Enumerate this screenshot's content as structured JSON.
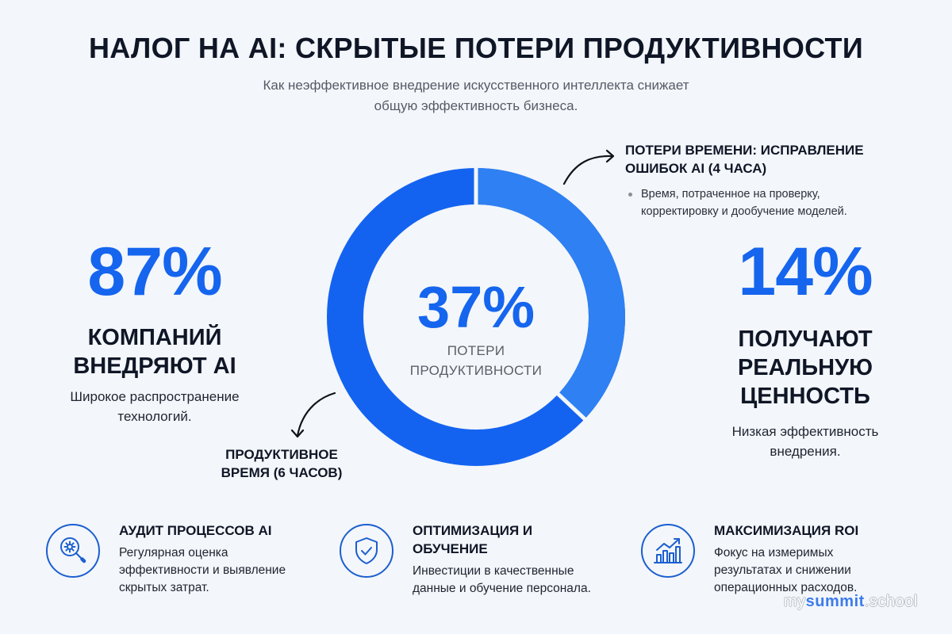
{
  "header": {
    "title": "НАЛОГ НА AI: СКРЫТЫЕ ПОТЕРИ ПРОДУКТИВНОСТИ",
    "subtitle_line1": "Как неэффективное внедрение искусственного интеллекта снижает",
    "subtitle_line2": "общую эффективность бизнеса."
  },
  "left_stat": {
    "value": "87%",
    "head_line1": "КОМПАНИЙ",
    "head_line2": "ВНЕДРЯЮТ AI",
    "desc_line1": "Широкое распространение",
    "desc_line2": "технологий."
  },
  "right_stat": {
    "value": "14%",
    "head_line1": "ПОЛУЧАЮТ",
    "head_line2": "РЕАЛЬНУЮ",
    "head_line3": "ЦЕННОСТЬ",
    "desc_line1": "Низкая эффективность",
    "desc_line2": "внедрения."
  },
  "donut": {
    "value": "37%",
    "label_line1": "ПОТЕРИ",
    "label_line2": "ПРОДУКТИВНОСТИ"
  },
  "callouts": {
    "loss_title_line1": "ПОТЕРИ ВРЕМЕНИ: ИСПРАВЛЕНИЕ",
    "loss_title_line2": "ОШИБОК AI (4 ЧАСА)",
    "loss_bullet_line1": "Время, потраченное на проверку,",
    "loss_bullet_line2": "корректировку и дообучение моделей.",
    "productive_line1": "ПРОДУКТИВНОЕ",
    "productive_line2": "ВРЕМЯ (6 ЧАСОВ)"
  },
  "features": [
    {
      "icon": "magnifier-gear-icon",
      "title": "АУДИТ ПРОЦЕССОВ AI",
      "desc_line1": "Регулярная оценка",
      "desc_line2": "эффективности и выявление",
      "desc_line3": "скрытых затрат."
    },
    {
      "icon": "shield-check-icon",
      "title_line1": "ОПТИМИЗАЦИЯ И",
      "title_line2": "ОБУЧЕНИЕ",
      "desc_line1": "Инвестиции в качественные",
      "desc_line2": "данные и обучение персонала."
    },
    {
      "icon": "growth-chart-icon",
      "title": "МАКСИМИЗАЦИЯ ROI",
      "desc_line1": "Фокус на измеримых",
      "desc_line2": "результатах и снижении",
      "desc_line3": "операционных расходов."
    }
  ],
  "watermark": {
    "prefix": "my",
    "brand": "summit",
    "suffix": ".school"
  },
  "colors": {
    "background": "#F3F6FA",
    "accent_dark": "#1463F0",
    "accent_light": "#2F80F2",
    "text": "#0F1626",
    "muted": "#555B66",
    "icon_stroke": "#1B5FD0"
  },
  "chart_data": {
    "type": "pie",
    "variant": "donut",
    "title": "37% ПОТЕРИ ПРОДУКТИВНОСТИ",
    "categories": [
      "ПОТЕРИ ВРЕМЕНИ: ИСПРАВЛЕНИЕ ОШИБОК AI (4 ЧАСА)",
      "ПРОДУКТИВНОЕ ВРЕМЯ (6 ЧАСОВ)"
    ],
    "values": [
      37,
      63
    ],
    "hours": [
      4,
      6
    ],
    "colors": [
      "#2F80F2",
      "#1463F0"
    ],
    "center_label": "37%",
    "annotations": [
      "87% КОМПАНИЙ ВНЕДРЯЮТ AI",
      "14% ПОЛУЧАЮТ РЕАЛЬНУЮ ЦЕННОСТЬ"
    ]
  }
}
